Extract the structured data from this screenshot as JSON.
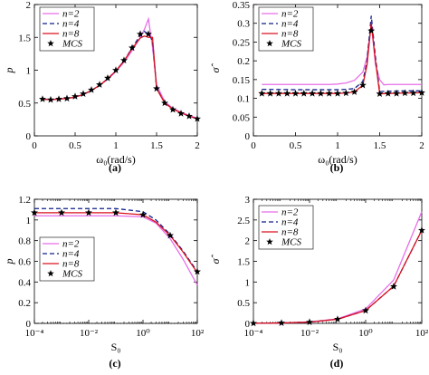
{
  "chart_data": [
    {
      "id": "a",
      "type": "line",
      "panel_label": "(a)",
      "ylabel": "p",
      "xlabel": "ω₀(rad/s)",
      "xlim": [
        0,
        2
      ],
      "ylim": [
        0,
        2
      ],
      "xscale": "linear",
      "x_ticks": [
        0,
        0.5,
        1,
        1.5,
        2
      ],
      "x_tick_labels": [
        "0",
        "0.5",
        "1",
        "1.5",
        "2"
      ],
      "y_ticks": [
        0,
        0.5,
        1,
        1.5,
        2
      ],
      "y_tick_labels": [
        "0",
        "0.5",
        "1",
        "1.5",
        "2"
      ],
      "grid": false,
      "legend_position": "top-left",
      "series": [
        {
          "name": "n=2",
          "style": "solid",
          "color": "#e86ee8",
          "x": [
            0.1,
            0.2,
            0.3,
            0.4,
            0.5,
            0.6,
            0.7,
            0.8,
            0.9,
            1.0,
            1.1,
            1.2,
            1.3,
            1.35,
            1.4,
            1.45,
            1.5,
            1.6,
            1.7,
            1.8,
            1.9,
            2.0
          ],
          "y": [
            0.56,
            0.55,
            0.56,
            0.57,
            0.59,
            0.63,
            0.69,
            0.77,
            0.86,
            0.98,
            1.12,
            1.3,
            1.5,
            1.62,
            1.78,
            1.35,
            0.78,
            0.52,
            0.42,
            0.36,
            0.31,
            0.27
          ]
        },
        {
          "name": "n=4",
          "style": "dashed",
          "color": "#0f1f8c",
          "x": [
            0.1,
            0.2,
            0.3,
            0.4,
            0.5,
            0.6,
            0.7,
            0.8,
            0.9,
            1.0,
            1.1,
            1.2,
            1.3,
            1.35,
            1.4,
            1.45,
            1.5,
            1.6,
            1.7,
            1.8,
            1.9,
            2.0
          ],
          "y": [
            0.56,
            0.55,
            0.56,
            0.57,
            0.59,
            0.63,
            0.69,
            0.77,
            0.87,
            0.99,
            1.14,
            1.34,
            1.53,
            1.59,
            1.55,
            1.45,
            0.73,
            0.5,
            0.41,
            0.35,
            0.3,
            0.26
          ]
        },
        {
          "name": "n=8",
          "style": "solid",
          "color": "#d9121e",
          "x": [
            0.1,
            0.2,
            0.3,
            0.4,
            0.5,
            0.6,
            0.7,
            0.8,
            0.9,
            1.0,
            1.1,
            1.2,
            1.3,
            1.35,
            1.4,
            1.45,
            1.5,
            1.6,
            1.7,
            1.8,
            1.9,
            2.0
          ],
          "y": [
            0.56,
            0.55,
            0.56,
            0.57,
            0.59,
            0.63,
            0.69,
            0.77,
            0.87,
            0.99,
            1.14,
            1.33,
            1.49,
            1.52,
            1.5,
            1.5,
            0.72,
            0.5,
            0.41,
            0.35,
            0.3,
            0.26
          ]
        },
        {
          "name": "MCS",
          "style": "markers",
          "color": "#000000",
          "x": [
            0.1,
            0.2,
            0.3,
            0.4,
            0.5,
            0.6,
            0.7,
            0.8,
            0.9,
            1.0,
            1.1,
            1.2,
            1.3,
            1.4,
            1.5,
            1.6,
            1.7,
            1.8,
            1.9,
            2.0
          ],
          "y": [
            0.56,
            0.55,
            0.56,
            0.57,
            0.6,
            0.64,
            0.7,
            0.78,
            0.88,
            1.0,
            1.15,
            1.34,
            1.55,
            1.55,
            0.72,
            0.5,
            0.4,
            0.34,
            0.3,
            0.26
          ]
        }
      ]
    },
    {
      "id": "b",
      "type": "line",
      "panel_label": "(b)",
      "ylabel": "σ̂",
      "xlabel": "ω₀(rad/s)",
      "xlim": [
        0,
        2
      ],
      "ylim": [
        0,
        0.35
      ],
      "xscale": "linear",
      "x_ticks": [
        0,
        0.5,
        1,
        1.5,
        2
      ],
      "x_tick_labels": [
        "0",
        "0.5",
        "1",
        "1.5",
        "2"
      ],
      "y_ticks": [
        0,
        0.05,
        0.1,
        0.15,
        0.2,
        0.25,
        0.3,
        0.35
      ],
      "y_tick_labels": [
        "0",
        "0.05",
        "0.1",
        "0.15",
        "0.2",
        "0.25",
        "0.3",
        "0.35"
      ],
      "grid": false,
      "legend_position": "top-left",
      "series": [
        {
          "name": "n=2",
          "style": "solid",
          "color": "#e86ee8",
          "x": [
            0.1,
            0.5,
            0.9,
            1.0,
            1.1,
            1.2,
            1.3,
            1.35,
            1.4,
            1.45,
            1.5,
            1.55,
            1.6,
            1.8,
            2.0
          ],
          "y": [
            0.137,
            0.137,
            0.137,
            0.138,
            0.141,
            0.148,
            0.17,
            0.21,
            0.3,
            0.19,
            0.15,
            0.136,
            0.137,
            0.137,
            0.137
          ]
        },
        {
          "name": "n=4",
          "style": "dashed",
          "color": "#0f1f8c",
          "x": [
            0.1,
            0.5,
            0.9,
            1.0,
            1.1,
            1.2,
            1.3,
            1.35,
            1.4,
            1.45,
            1.5,
            1.6,
            1.8,
            2.0
          ],
          "y": [
            0.124,
            0.123,
            0.123,
            0.123,
            0.124,
            0.126,
            0.145,
            0.2,
            0.32,
            0.21,
            0.118,
            0.119,
            0.12,
            0.12
          ]
        },
        {
          "name": "n=8",
          "style": "solid",
          "color": "#d9121e",
          "x": [
            0.1,
            0.5,
            0.9,
            1.0,
            1.1,
            1.2,
            1.3,
            1.35,
            1.4,
            1.45,
            1.5,
            1.6,
            1.8,
            2.0
          ],
          "y": [
            0.113,
            0.113,
            0.113,
            0.113,
            0.114,
            0.117,
            0.135,
            0.19,
            0.3,
            0.2,
            0.112,
            0.113,
            0.114,
            0.115
          ]
        },
        {
          "name": "MCS",
          "style": "markers",
          "color": "#000000",
          "x": [
            0.1,
            0.2,
            0.3,
            0.4,
            0.5,
            0.6,
            0.7,
            0.8,
            0.9,
            1.0,
            1.1,
            1.2,
            1.3,
            1.4,
            1.5,
            1.6,
            1.7,
            1.8,
            1.9,
            2.0
          ],
          "y": [
            0.113,
            0.113,
            0.113,
            0.113,
            0.113,
            0.113,
            0.113,
            0.113,
            0.113,
            0.113,
            0.114,
            0.117,
            0.135,
            0.28,
            0.112,
            0.113,
            0.113,
            0.114,
            0.114,
            0.115
          ]
        }
      ]
    },
    {
      "id": "c",
      "type": "line",
      "panel_label": "(c)",
      "ylabel": "p",
      "xlabel": "S₀",
      "xlim": [
        0.0001,
        100
      ],
      "ylim": [
        0,
        1.2
      ],
      "xscale": "log",
      "x_ticks": [
        0.0001,
        0.01,
        1,
        100
      ],
      "x_tick_labels": [
        "10⁻⁴",
        "10⁻²",
        "10⁰",
        "10²"
      ],
      "y_ticks": [
        0,
        0.2,
        0.4,
        0.6,
        0.8,
        1,
        1.2
      ],
      "y_tick_labels": [
        "0",
        "0.2",
        "0.4",
        "0.6",
        "0.8",
        "1",
        "1.2"
      ],
      "grid": false,
      "legend_position": "middle-left",
      "series": [
        {
          "name": "n=2",
          "style": "solid",
          "color": "#e86ee8",
          "x": [
            0.0001,
            0.001,
            0.01,
            0.1,
            1,
            3,
            10,
            30,
            100
          ],
          "y": [
            1.04,
            1.04,
            1.04,
            1.04,
            1.03,
            0.97,
            0.82,
            0.62,
            0.37
          ]
        },
        {
          "name": "n=4",
          "style": "dashed",
          "color": "#0f1f8c",
          "x": [
            0.0001,
            0.001,
            0.01,
            0.1,
            1,
            3,
            10,
            30,
            100
          ],
          "y": [
            1.11,
            1.11,
            1.11,
            1.11,
            1.08,
            1.0,
            0.86,
            0.7,
            0.5
          ]
        },
        {
          "name": "n=8",
          "style": "solid",
          "color": "#d9121e",
          "x": [
            0.0001,
            0.001,
            0.01,
            0.1,
            1,
            3,
            10,
            30,
            100
          ],
          "y": [
            1.07,
            1.07,
            1.07,
            1.07,
            1.05,
            0.98,
            0.85,
            0.69,
            0.49
          ]
        },
        {
          "name": "MCS",
          "style": "markers",
          "color": "#000000",
          "x": [
            0.0001,
            0.001,
            0.01,
            0.1,
            1,
            10,
            100
          ],
          "y": [
            1.07,
            1.07,
            1.07,
            1.07,
            1.05,
            0.85,
            0.5
          ]
        },
        {
          "style": "dotted",
          "color": "#000000",
          "x": [
            0.0001,
            100
          ],
          "y": [
            0,
            0
          ]
        }
      ]
    },
    {
      "id": "d",
      "type": "line",
      "panel_label": "(d)",
      "ylabel": "σ̂",
      "xlabel": "S₀",
      "xlim": [
        0.0001,
        100
      ],
      "ylim": [
        0,
        3
      ],
      "xscale": "log",
      "x_ticks": [
        0.0001,
        0.01,
        1,
        100
      ],
      "x_tick_labels": [
        "10⁻⁴",
        "10⁻²",
        "10⁰",
        "10²"
      ],
      "y_ticks": [
        0,
        0.5,
        1,
        1.5,
        2,
        2.5,
        3
      ],
      "y_tick_labels": [
        "0",
        "0.5",
        "1",
        "1.5",
        "2",
        "2.5",
        "3"
      ],
      "grid": false,
      "legend_position": "top-left",
      "series": [
        {
          "name": "n=2",
          "style": "solid",
          "color": "#e86ee8",
          "x": [
            0.0001,
            0.001,
            0.01,
            0.1,
            1,
            10,
            100
          ],
          "y": [
            0.003,
            0.01,
            0.035,
            0.11,
            0.35,
            1.05,
            2.7
          ]
        },
        {
          "name": "n=4",
          "style": "dashed",
          "color": "#0f1f8c",
          "x": [
            0.0001,
            0.001,
            0.01,
            0.1,
            1,
            10,
            100
          ],
          "y": [
            0.003,
            0.01,
            0.03,
            0.1,
            0.31,
            0.9,
            2.25
          ]
        },
        {
          "name": "n=8",
          "style": "solid",
          "color": "#d9121e",
          "x": [
            0.0001,
            0.001,
            0.01,
            0.1,
            1,
            10,
            100
          ],
          "y": [
            0.003,
            0.01,
            0.03,
            0.1,
            0.31,
            0.9,
            2.25
          ]
        },
        {
          "name": "MCS",
          "style": "markers",
          "color": "#000000",
          "x": [
            0.0001,
            0.001,
            0.01,
            0.1,
            1,
            10,
            100
          ],
          "y": [
            0.003,
            0.01,
            0.03,
            0.1,
            0.31,
            0.89,
            2.25
          ]
        }
      ]
    }
  ]
}
